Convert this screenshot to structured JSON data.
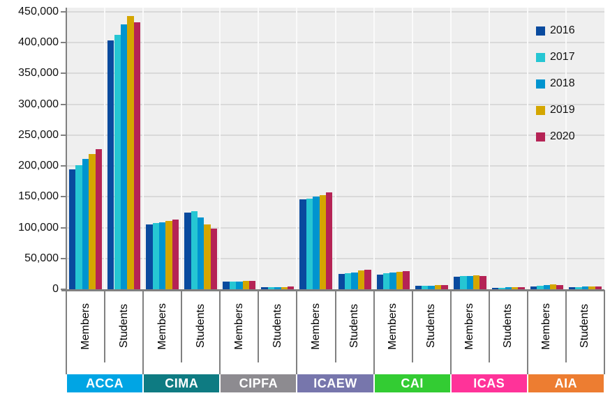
{
  "chart_data": {
    "type": "bar",
    "legend": {
      "position": "top-right",
      "entries": [
        {
          "label": "2016",
          "color": "#094A9E"
        },
        {
          "label": "2017",
          "color": "#26C6D3"
        },
        {
          "label": "2018",
          "color": "#0094CF"
        },
        {
          "label": "2019",
          "color": "#D4A600"
        },
        {
          "label": "2020",
          "color": "#B52355"
        }
      ]
    },
    "y_axis": {
      "min": 0,
      "max": 450000,
      "step": 50000,
      "grid": true,
      "tick_labels": [
        "0",
        "50,000",
        "100,000",
        "150,000",
        "200,000",
        "250,000",
        "300,000",
        "350,000",
        "400,000",
        "450,000"
      ]
    },
    "column_types": [
      "Members",
      "Students"
    ],
    "bodies": [
      {
        "name": "ACCA",
        "band_color": "#00A5E4"
      },
      {
        "name": "CIMA",
        "band_color": "#0E7B82"
      },
      {
        "name": "CIPFA",
        "band_color": "#8D8B90"
      },
      {
        "name": "ICAEW",
        "band_color": "#7776AC"
      },
      {
        "name": "CAI",
        "band_color": "#33CC33"
      },
      {
        "name": "ICAS",
        "band_color": "#FF3399"
      },
      {
        "name": "AIA",
        "band_color": "#ED7D31"
      }
    ],
    "series": [
      {
        "name": "2016",
        "color": "#094A9E",
        "values": [
          195000,
          404000,
          105000,
          124000,
          12500,
          3000,
          146000,
          25000,
          24000,
          5500,
          20500,
          2700,
          5000,
          3000
        ]
      },
      {
        "name": "2017",
        "color": "#26C6D3",
        "values": [
          201000,
          413000,
          107000,
          127000,
          12800,
          3200,
          147000,
          26000,
          25500,
          6000,
          21000,
          2800,
          6000,
          3500
        ]
      },
      {
        "name": "2018",
        "color": "#0094CF",
        "values": [
          211000,
          430000,
          109000,
          116000,
          13000,
          3400,
          150000,
          27000,
          27000,
          6000,
          21500,
          2900,
          7000,
          4000
        ]
      },
      {
        "name": "2019",
        "color": "#D4A600",
        "values": [
          219000,
          443000,
          111000,
          105000,
          13200,
          3600,
          153000,
          30000,
          28000,
          6500,
          22500,
          3000,
          8000,
          4500
        ]
      },
      {
        "name": "2020",
        "color": "#B52355",
        "values": [
          227000,
          433000,
          113000,
          98000,
          13500,
          4200,
          157000,
          31500,
          29000,
          6500,
          22000,
          3000,
          6500,
          4000
        ]
      }
    ],
    "colors": {
      "plot_bg": "#EFEFEF",
      "horizontal_grid": "#D9D9D9",
      "vertical_grid": "#FAFAFA",
      "axis": "#808080",
      "label_text": "#000000",
      "band_text": "#FFFFFF"
    }
  }
}
